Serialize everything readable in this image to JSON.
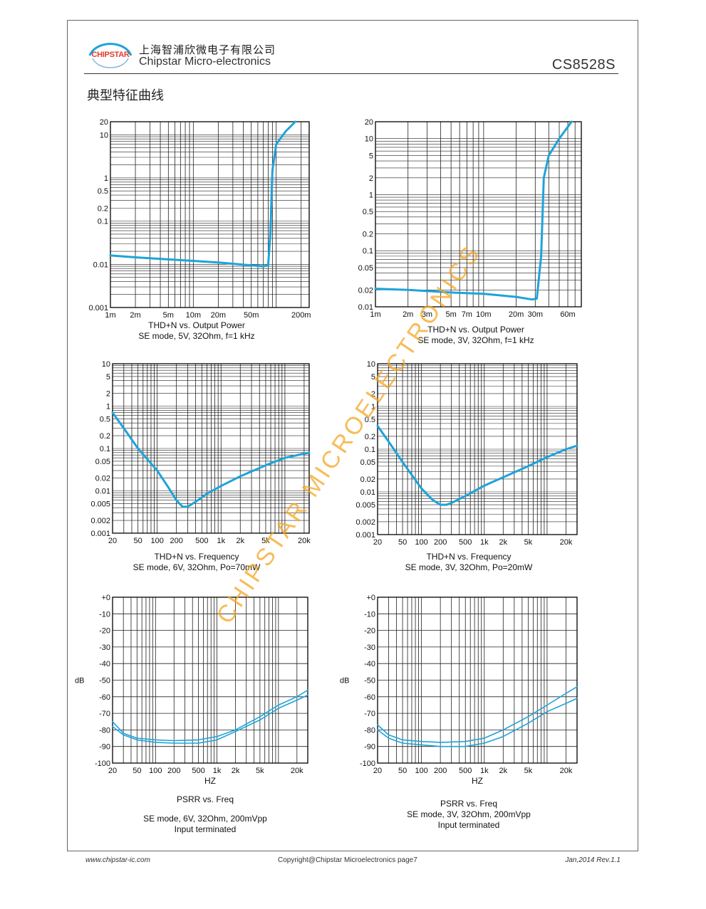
{
  "header": {
    "logo_text": "CHIPSTAR",
    "company_cn": "上海智浦欣微电子有限公司",
    "company_en": "Chipstar Micro-electronics",
    "part_number": "CS8528S"
  },
  "section_title": "典型特征曲线",
  "watermark": "CHIPSTAR MICROELECTRONICS",
  "colors": {
    "curve": "#1ea3d9",
    "grid": "#222222",
    "watermark": "#f5a623"
  },
  "footer": {
    "url": "www.chipstar-ic.com",
    "copyright": "Copyright@Chipstar Microelectronics    page7",
    "date": "Jan,2014  Rev.1.1"
  },
  "chart_data": [
    {
      "id": "c1",
      "type": "line",
      "xscale": "log",
      "yscale": "log",
      "xlim": [
        0.001,
        0.25
      ],
      "ylim": [
        0.001,
        20
      ],
      "xticks": [
        [
          "1m",
          0.001
        ],
        [
          "2m",
          0.002
        ],
        [
          "5m",
          0.005
        ],
        [
          "10m",
          0.01
        ],
        [
          "20m",
          0.02
        ],
        [
          "50m",
          0.05
        ],
        [
          "200m",
          0.2
        ]
      ],
      "yticks": [
        [
          "20",
          20
        ],
        [
          "10",
          10
        ],
        [
          "1",
          1
        ],
        [
          "0.5",
          0.5
        ],
        [
          "0.2",
          0.2
        ],
        [
          "0.1",
          0.1
        ],
        [
          "0.01",
          0.01
        ],
        [
          "0.001",
          0.001
        ]
      ],
      "ylabel": "",
      "caption": [
        "THD+N vs. Output Power",
        "SE mode, 5V, 32Ohm, f=1 kHz"
      ],
      "series": [
        {
          "points": [
            [
              0.001,
              0.016
            ],
            [
              0.002,
              0.0145
            ],
            [
              0.005,
              0.013
            ],
            [
              0.01,
              0.012
            ],
            [
              0.02,
              0.011
            ],
            [
              0.05,
              0.0095
            ],
            [
              0.07,
              0.009
            ],
            [
              0.08,
              0.0095
            ],
            [
              0.085,
              0.05
            ],
            [
              0.09,
              1.5
            ],
            [
              0.1,
              6
            ],
            [
              0.13,
              12
            ],
            [
              0.17,
              20
            ]
          ]
        }
      ]
    },
    {
      "id": "c2",
      "type": "line",
      "xscale": "log",
      "yscale": "log",
      "xlim": [
        0.001,
        0.08
      ],
      "ylim": [
        0.01,
        20
      ],
      "xticks": [
        [
          "1m",
          0.001
        ],
        [
          "2m",
          0.002
        ],
        [
          "3m",
          0.003
        ],
        [
          "5m",
          0.005
        ],
        [
          "7m",
          0.007
        ],
        [
          "10m",
          0.01
        ],
        [
          "20m",
          0.02
        ],
        [
          "30m",
          0.03
        ],
        [
          "60m",
          0.06
        ]
      ],
      "yticks": [
        [
          "20",
          20
        ],
        [
          "10",
          10
        ],
        [
          "5",
          5
        ],
        [
          "2",
          2
        ],
        [
          "1",
          1
        ],
        [
          "0.5",
          0.5
        ],
        [
          "0.2",
          0.2
        ],
        [
          "0.1",
          0.1
        ],
        [
          "0.05",
          0.05
        ],
        [
          "0.02",
          0.02
        ],
        [
          "0.01",
          0.01
        ]
      ],
      "ylabel": "",
      "caption": [
        "THD+N vs. Output Power",
        "SE mode, 3V, 32Ohm, f=1 kHz"
      ],
      "series": [
        {
          "points": [
            [
              0.001,
              0.021
            ],
            [
              0.002,
              0.02
            ],
            [
              0.005,
              0.018
            ],
            [
              0.01,
              0.017
            ],
            [
              0.02,
              0.015
            ],
            [
              0.028,
              0.0135
            ],
            [
              0.031,
              0.014
            ],
            [
              0.034,
              0.08
            ],
            [
              0.036,
              2
            ],
            [
              0.04,
              5
            ],
            [
              0.05,
              10
            ],
            [
              0.065,
              20
            ]
          ]
        }
      ]
    },
    {
      "id": "c3",
      "type": "line",
      "xscale": "log",
      "yscale": "log",
      "xlim": [
        20,
        24000
      ],
      "ylim": [
        0.001,
        10
      ],
      "xticks": [
        [
          "20",
          20
        ],
        [
          "50",
          50
        ],
        [
          "100",
          100
        ],
        [
          "200",
          200
        ],
        [
          "500",
          500
        ],
        [
          "1k",
          1000
        ],
        [
          "2k",
          2000
        ],
        [
          "5k",
          5000
        ],
        [
          "20k",
          20000
        ]
      ],
      "yticks": [
        [
          "10",
          10
        ],
        [
          "5",
          5
        ],
        [
          "2",
          2
        ],
        [
          "1",
          1
        ],
        [
          "0.5",
          0.5
        ],
        [
          "0.2",
          0.2
        ],
        [
          "0.1",
          0.1
        ],
        [
          "0.05",
          0.05
        ],
        [
          "0.02",
          0.02
        ],
        [
          "0.01",
          0.01
        ],
        [
          "0.005",
          0.005
        ],
        [
          "0.002",
          0.002
        ],
        [
          "0.001",
          0.001
        ]
      ],
      "ylabel": "",
      "caption": [
        "THD+N vs. Frequency",
        "SE mode, 6V, 32Ohm, Po=70mW"
      ],
      "series": [
        {
          "points": [
            [
              20,
              0.7
            ],
            [
              30,
              0.3
            ],
            [
              50,
              0.1
            ],
            [
              100,
              0.03
            ],
            [
              150,
              0.012
            ],
            [
              200,
              0.006
            ],
            [
              250,
              0.0042
            ],
            [
              300,
              0.0042
            ],
            [
              400,
              0.0055
            ],
            [
              600,
              0.0085
            ],
            [
              1000,
              0.013
            ],
            [
              2000,
              0.022
            ],
            [
              5000,
              0.04
            ],
            [
              10000,
              0.06
            ],
            [
              20000,
              0.075
            ],
            [
              24000,
              0.08
            ]
          ]
        }
      ]
    },
    {
      "id": "c4",
      "type": "line",
      "xscale": "log",
      "yscale": "log",
      "xlim": [
        20,
        30000
      ],
      "ylim": [
        0.001,
        10
      ],
      "xticks": [
        [
          "20",
          20
        ],
        [
          "50",
          50
        ],
        [
          "100",
          100
        ],
        [
          "200",
          200
        ],
        [
          "500",
          500
        ],
        [
          "1k",
          1000
        ],
        [
          "2k",
          2000
        ],
        [
          "5k",
          5000
        ],
        [
          "20k",
          20000
        ]
      ],
      "yticks": [
        [
          "10",
          10
        ],
        [
          "5",
          5
        ],
        [
          "2",
          2
        ],
        [
          "1",
          1
        ],
        [
          "0.5",
          0.5
        ],
        [
          "0.2",
          0.2
        ],
        [
          "0.1",
          0.1
        ],
        [
          "0.05",
          0.05
        ],
        [
          "0.02",
          0.02
        ],
        [
          "0.01",
          0.01
        ],
        [
          "0.005",
          0.005
        ],
        [
          "0.002",
          0.002
        ],
        [
          "0.001",
          0.001
        ]
      ],
      "ylabel": "",
      "caption": [
        "THD+N vs. Frequency",
        "SE mode, 3V, 32Ohm, Po=20mW"
      ],
      "series": [
        {
          "points": [
            [
              20,
              0.35
            ],
            [
              30,
              0.15
            ],
            [
              50,
              0.05
            ],
            [
              100,
              0.012
            ],
            [
              150,
              0.0065
            ],
            [
              200,
              0.005
            ],
            [
              250,
              0.005
            ],
            [
              300,
              0.0055
            ],
            [
              500,
              0.008
            ],
            [
              1000,
              0.014
            ],
            [
              2000,
              0.022
            ],
            [
              5000,
              0.04
            ],
            [
              10000,
              0.065
            ],
            [
              20000,
              0.1
            ],
            [
              30000,
              0.12
            ]
          ]
        }
      ]
    },
    {
      "id": "c5",
      "type": "line",
      "xscale": "log",
      "yscale": "linear",
      "xlim": [
        20,
        30000
      ],
      "ylim": [
        -100,
        0
      ],
      "xticks": [
        [
          "20",
          20
        ],
        [
          "50",
          50
        ],
        [
          "100",
          100
        ],
        [
          "200",
          200
        ],
        [
          "500",
          500
        ],
        [
          "1k",
          1000
        ],
        [
          "2k",
          2000
        ],
        [
          "5k",
          5000
        ],
        [
          "20k",
          20000
        ]
      ],
      "yticks": [
        [
          "+0",
          0
        ],
        [
          "-10",
          -10
        ],
        [
          "-20",
          -20
        ],
        [
          "-30",
          -30
        ],
        [
          "-40",
          -40
        ],
        [
          "-50",
          -50
        ],
        [
          "-60",
          -60
        ],
        [
          "-70",
          -70
        ],
        [
          "-80",
          -80
        ],
        [
          "-90",
          -90
        ],
        [
          "-100",
          -100
        ]
      ],
      "ylabel": "dB",
      "xlabel": "HZ",
      "caption": [
        "PSRR vs. Freq",
        "",
        "SE mode, 6V, 32Ohm, 200mVpp",
        "Input terminated"
      ],
      "series": [
        {
          "points": [
            [
              20,
              -75
            ],
            [
              30,
              -82
            ],
            [
              50,
              -85
            ],
            [
              100,
              -86
            ],
            [
              200,
              -86.5
            ],
            [
              500,
              -86
            ],
            [
              1000,
              -84
            ],
            [
              2000,
              -80
            ],
            [
              5000,
              -72
            ],
            [
              10000,
              -65
            ],
            [
              20000,
              -60
            ],
            [
              30000,
              -56
            ]
          ]
        },
        {
          "points": [
            [
              20,
              -78
            ],
            [
              30,
              -83
            ],
            [
              50,
              -86
            ],
            [
              100,
              -87.5
            ],
            [
              200,
              -88
            ],
            [
              500,
              -88
            ],
            [
              1000,
              -86
            ],
            [
              2000,
              -81
            ],
            [
              5000,
              -74
            ],
            [
              10000,
              -67
            ],
            [
              20000,
              -62
            ],
            [
              30000,
              -59
            ]
          ]
        }
      ]
    },
    {
      "id": "c6",
      "type": "line",
      "xscale": "log",
      "yscale": "linear",
      "xlim": [
        20,
        30000
      ],
      "ylim": [
        -100,
        0
      ],
      "xticks": [
        [
          "20",
          20
        ],
        [
          "50",
          50
        ],
        [
          "100",
          100
        ],
        [
          "200",
          200
        ],
        [
          "500",
          500
        ],
        [
          "1k",
          1000
        ],
        [
          "2k",
          2000
        ],
        [
          "5k",
          5000
        ],
        [
          "20k",
          20000
        ]
      ],
      "yticks": [
        [
          "+0",
          0
        ],
        [
          "-10",
          -10
        ],
        [
          "-20",
          -20
        ],
        [
          "-30",
          -30
        ],
        [
          "-40",
          -40
        ],
        [
          "-50",
          -50
        ],
        [
          "-60",
          -60
        ],
        [
          "-70",
          -70
        ],
        [
          "-80",
          -80
        ],
        [
          "-90",
          -90
        ],
        [
          "-100",
          -100
        ]
      ],
      "ylabel": "dB",
      "xlabel": "HZ",
      "caption": [
        "PSRR vs. Freq",
        "SE mode, 3V, 32Ohm, 200mVpp",
        "Input terminated"
      ],
      "series": [
        {
          "points": [
            [
              20,
              -77
            ],
            [
              30,
              -83
            ],
            [
              50,
              -86
            ],
            [
              100,
              -87
            ],
            [
              200,
              -87.5
            ],
            [
              500,
              -87
            ],
            [
              1000,
              -85
            ],
            [
              2000,
              -80
            ],
            [
              5000,
              -72
            ],
            [
              10000,
              -65
            ],
            [
              20000,
              -58
            ],
            [
              30000,
              -54
            ]
          ]
        },
        {
          "points": [
            [
              20,
              -80
            ],
            [
              30,
              -85
            ],
            [
              50,
              -88
            ],
            [
              100,
              -89
            ],
            [
              200,
              -90
            ],
            [
              500,
              -90
            ],
            [
              1000,
              -88
            ],
            [
              2000,
              -84
            ],
            [
              5000,
              -76
            ],
            [
              10000,
              -69
            ],
            [
              20000,
              -64
            ],
            [
              30000,
              -61
            ]
          ]
        }
      ]
    }
  ]
}
